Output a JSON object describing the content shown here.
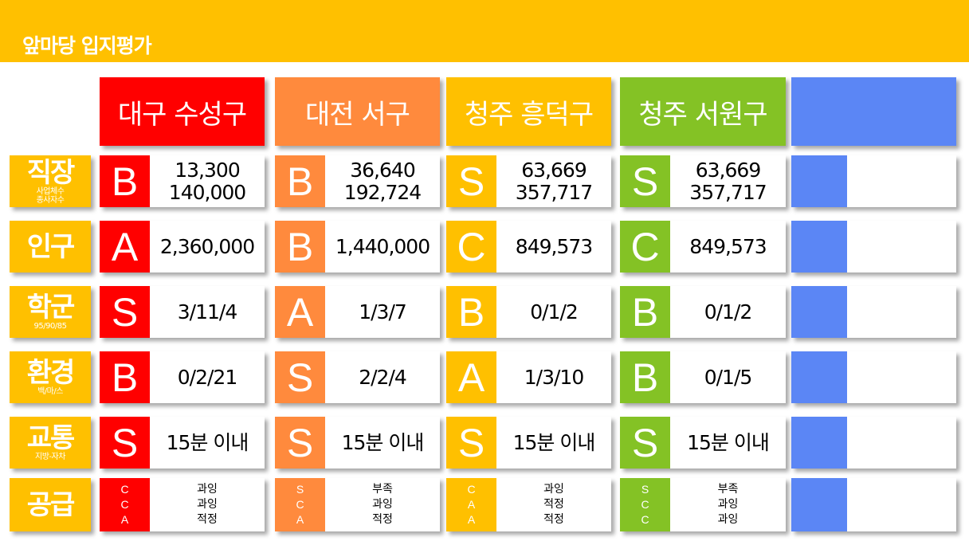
{
  "title": "앞마당 입지평가",
  "colors": {
    "banner": "#ffc000",
    "labels": "#ffc000",
    "regions": [
      "#ff0000",
      "#ff8a3d",
      "#ffc000",
      "#84c225",
      "#5b86f5"
    ]
  },
  "regions": [
    "대구 수성구",
    "대전 서구",
    "청주 흥덕구",
    "청주 서원구",
    ""
  ],
  "rows": [
    {
      "label": "직장",
      "sub": "사업체수\n종사자수"
    },
    {
      "label": "인구",
      "sub": ""
    },
    {
      "label": "학군",
      "sub": "95/90/85"
    },
    {
      "label": "환경",
      "sub": "백/마/스"
    },
    {
      "label": "교통",
      "sub": "지방-자차"
    },
    {
      "label": "공급",
      "sub": ""
    }
  ],
  "grid": [
    [
      {
        "grade": "B",
        "value": "13,300\n140,000"
      },
      {
        "grade": "B",
        "value": "36,640\n192,724"
      },
      {
        "grade": "S",
        "value": "63,669\n357,717"
      },
      {
        "grade": "S",
        "value": "63,669\n357,717"
      }
    ],
    [
      {
        "grade": "A",
        "value": "2,360,000"
      },
      {
        "grade": "B",
        "value": "1,440,000"
      },
      {
        "grade": "C",
        "value": "849,573"
      },
      {
        "grade": "C",
        "value": "849,573"
      }
    ],
    [
      {
        "grade": "S",
        "value": "3/11/4"
      },
      {
        "grade": "A",
        "value": "1/3/7"
      },
      {
        "grade": "B",
        "value": "0/1/2"
      },
      {
        "grade": "B",
        "value": "0/1/2"
      }
    ],
    [
      {
        "grade": "B",
        "value": "0/2/21"
      },
      {
        "grade": "S",
        "value": "2/2/4"
      },
      {
        "grade": "A",
        "value": "1/3/10"
      },
      {
        "grade": "B",
        "value": "0/1/5"
      }
    ],
    [
      {
        "grade": "S",
        "value": "15분 이내"
      },
      {
        "grade": "S",
        "value": "15분 이내"
      },
      {
        "grade": "S",
        "value": "15분 이내"
      },
      {
        "grade": "S",
        "value": "15분 이내"
      }
    ],
    [
      {
        "grade": "C\nC\nA",
        "value": "과잉\n과잉\n적정"
      },
      {
        "grade": "S\nC\nA",
        "value": "부족\n과잉\n적정"
      },
      {
        "grade": "C\nA\nA",
        "value": "과잉\n적정\n적정"
      },
      {
        "grade": "S\nC\nC",
        "value": "부족\n과잉\n과잉"
      }
    ]
  ]
}
